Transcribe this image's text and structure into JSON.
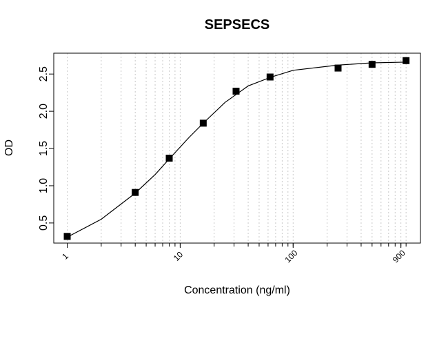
{
  "chart_data": {
    "type": "scatter",
    "title": "SEPSECS",
    "xlabel": "Concentration (ng/ml)",
    "ylabel": "OD",
    "xscale": "log",
    "xlim": [
      0.76,
      1340
    ],
    "ylim": [
      0.23,
      2.78
    ],
    "xticks": [
      1,
      10,
      100,
      900
    ],
    "xgrid": [
      1,
      2,
      3,
      4,
      5,
      6,
      7,
      8,
      9,
      10,
      20,
      30,
      40,
      50,
      60,
      70,
      80,
      90,
      100,
      200,
      300,
      400,
      500,
      600,
      700,
      800,
      900,
      1000
    ],
    "yticks": [
      0.5,
      {
        "value": 1,
        "label": "1.0"
      },
      1.5,
      {
        "value": 2,
        "label": "2.0"
      },
      2.5
    ],
    "grid": true,
    "grid_color": "#c8c8c8",
    "series": [
      {
        "marker": "square",
        "color": "#000000",
        "x": [
          1,
          4,
          8,
          16,
          31.25,
          62.5,
          250,
          500,
          1000
        ],
        "values": [
          0.32,
          0.91,
          1.37,
          1.84,
          2.27,
          2.46,
          2.58,
          2.63,
          2.68
        ]
      },
      {
        "style": "line",
        "color": "#000000",
        "x": [
          1,
          2,
          4,
          6,
          8,
          12,
          16,
          25,
          40,
          64,
          100,
          250,
          500,
          1000
        ],
        "values": [
          0.31,
          0.55,
          0.9,
          1.15,
          1.36,
          1.65,
          1.84,
          2.12,
          2.34,
          2.46,
          2.55,
          2.62,
          2.65,
          2.66
        ]
      }
    ]
  }
}
